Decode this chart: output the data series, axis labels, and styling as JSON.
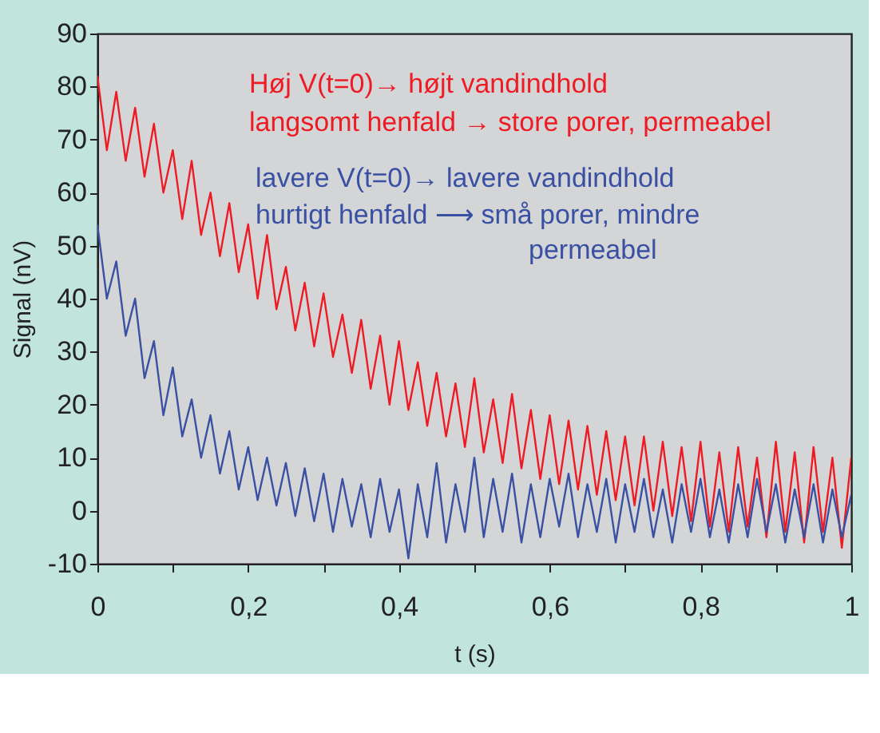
{
  "chart_data": {
    "type": "line",
    "xlabel": "t (s)",
    "ylabel": "Signal (nV)",
    "x": [
      0,
      0.0125,
      0.025,
      0.0375,
      0.05,
      0.0625,
      0.075,
      0.0875,
      0.1,
      0.1125,
      0.125,
      0.1375,
      0.15,
      0.1625,
      0.175,
      0.1875,
      0.2,
      0.2125,
      0.225,
      0.2375,
      0.25,
      0.2625,
      0.275,
      0.2875,
      0.3,
      0.3125,
      0.325,
      0.3375,
      0.35,
      0.3625,
      0.375,
      0.3875,
      0.4,
      0.4125,
      0.425,
      0.4375,
      0.45,
      0.4625,
      0.475,
      0.4875,
      0.5,
      0.5125,
      0.525,
      0.5375,
      0.55,
      0.5625,
      0.575,
      0.5875,
      0.6,
      0.6125,
      0.625,
      0.6375,
      0.65,
      0.6625,
      0.675,
      0.6875,
      0.7,
      0.7125,
      0.725,
      0.7375,
      0.75,
      0.7625,
      0.775,
      0.7875,
      0.8,
      0.8125,
      0.825,
      0.8375,
      0.85,
      0.8625,
      0.875,
      0.8875,
      0.9,
      0.9125,
      0.925,
      0.9375,
      0.95,
      0.9625,
      0.975,
      0.9875,
      1
    ],
    "series": [
      {
        "color": "#ed1c24",
        "values": [
          82,
          68,
          79,
          66,
          76,
          63,
          73,
          60,
          68,
          55,
          66,
          52,
          60,
          48,
          58,
          45,
          54,
          40,
          52,
          38,
          46,
          34,
          43,
          31,
          41,
          29,
          37,
          26,
          36,
          23,
          33,
          20,
          32,
          19,
          28,
          16,
          26,
          14,
          24,
          12,
          25,
          11,
          21,
          9,
          22,
          8,
          19,
          6,
          18,
          5,
          17,
          4,
          16,
          3,
          15,
          2,
          14,
          1,
          14,
          0,
          13,
          -1,
          12,
          -2,
          13,
          -3,
          11,
          -4,
          12,
          -3,
          10,
          -5,
          13,
          -4,
          11,
          -6,
          12,
          -4,
          10,
          -7,
          10
        ]
      },
      {
        "color": "#3a51a3",
        "values": [
          54,
          40,
          47,
          33,
          40,
          25,
          32,
          18,
          27,
          14,
          21,
          10,
          18,
          7,
          15,
          4,
          12,
          2,
          10,
          1,
          9,
          -1,
          8,
          -2,
          7,
          -4,
          6,
          -3,
          5,
          -5,
          6,
          -4,
          4,
          -9,
          5,
          -5,
          9,
          -6,
          5,
          -4,
          10,
          -5,
          6,
          -4,
          7,
          -6,
          5,
          -5,
          6,
          -3,
          7,
          -5,
          5,
          -4,
          6,
          -6,
          5,
          -4,
          6,
          -5,
          4,
          -6,
          5,
          -4,
          6,
          -5,
          4,
          -6,
          5,
          -5,
          6,
          -4,
          5,
          -6,
          4,
          -5,
          5,
          -6,
          4,
          -5,
          3
        ]
      }
    ],
    "xlim": [
      0,
      1
    ],
    "ylim": [
      -10,
      90
    ],
    "xticks": [
      0,
      {
        "value": 0.1,
        "label": null
      },
      {
        "value": 0.2,
        "label": "0,2"
      },
      {
        "value": 0.3,
        "label": null
      },
      {
        "value": 0.4,
        "label": "0,4"
      },
      {
        "value": 0.5,
        "label": null
      },
      {
        "value": 0.6,
        "label": "0,6"
      },
      {
        "value": 0.7,
        "label": null
      },
      {
        "value": 0.8,
        "label": "0,8"
      },
      {
        "value": 0.9,
        "label": null
      },
      1
    ],
    "yticks": [
      -10,
      0,
      10,
      20,
      30,
      40,
      50,
      60,
      70,
      80,
      90
    ],
    "grid": false,
    "marker": "none",
    "line_style": "solid",
    "annotations": [
      "Høj V(t=0)→  højt vandindhold",
      "langsomt henfald → store porer, permeabel",
      "lavere V(t=0)→   lavere vandindhold",
      "hurtigt henfald ⟶  små porer, mindre",
      "permeabel"
    ]
  }
}
